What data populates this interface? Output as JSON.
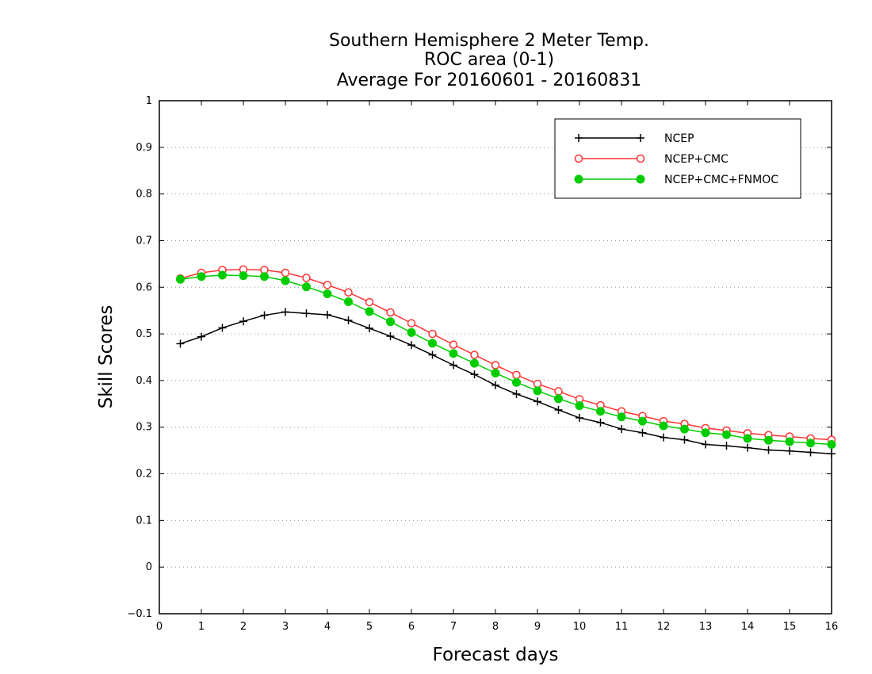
{
  "chart_data": {
    "type": "line",
    "title_lines": [
      "Southern Hemisphere 2 Meter Temp.",
      "ROC area (0-1)",
      "Average For 20160601 - 20160831"
    ],
    "xlabel": "Forecast days",
    "ylabel": "Skill Scores",
    "xlim": [
      0,
      16
    ],
    "ylim": [
      -0.1,
      1
    ],
    "x_ticks": [
      "0",
      "1",
      "2",
      "3",
      "4",
      "5",
      "6",
      "7",
      "8",
      "9",
      "10",
      "11",
      "12",
      "13",
      "14",
      "15",
      "16"
    ],
    "y_ticks": [
      "-0.1",
      "0",
      "0.1",
      "0.2",
      "0.3",
      "0.4",
      "0.5",
      "0.6",
      "0.7",
      "0.8",
      "0.9",
      "1"
    ],
    "grid": "horizontal dotted",
    "legend_position": "top-right",
    "x": [
      0.5,
      1,
      1.5,
      2,
      2.5,
      3,
      3.5,
      4,
      4.5,
      5,
      5.5,
      6,
      6.5,
      7,
      7.5,
      8,
      8.5,
      9,
      9.5,
      10,
      10.5,
      11,
      11.5,
      12,
      12.5,
      13,
      13.5,
      14,
      14.5,
      15,
      15.5,
      16
    ],
    "series": [
      {
        "name": "NCEP",
        "color": "#000000",
        "marker": "plus",
        "values": [
          0.479,
          0.494,
          0.513,
          0.527,
          0.54,
          0.547,
          0.544,
          0.541,
          0.529,
          0.512,
          0.495,
          0.476,
          0.455,
          0.433,
          0.413,
          0.39,
          0.371,
          0.355,
          0.337,
          0.32,
          0.31,
          0.296,
          0.288,
          0.278,
          0.273,
          0.263,
          0.26,
          0.256,
          0.251,
          0.249,
          0.246,
          0.243
        ]
      },
      {
        "name": "NCEP+CMC",
        "color": "#ff3333",
        "marker": "open-circle",
        "values": [
          0.619,
          0.631,
          0.637,
          0.638,
          0.637,
          0.631,
          0.62,
          0.605,
          0.589,
          0.568,
          0.546,
          0.523,
          0.5,
          0.477,
          0.455,
          0.433,
          0.412,
          0.393,
          0.377,
          0.36,
          0.347,
          0.334,
          0.324,
          0.313,
          0.307,
          0.298,
          0.293,
          0.287,
          0.283,
          0.28,
          0.276,
          0.273
        ]
      },
      {
        "name": "NCEP+CMC+FNMOC",
        "color": "#00cc00",
        "marker": "filled-circle",
        "values": [
          0.617,
          0.623,
          0.626,
          0.625,
          0.623,
          0.614,
          0.601,
          0.586,
          0.569,
          0.548,
          0.526,
          0.503,
          0.48,
          0.458,
          0.437,
          0.416,
          0.396,
          0.378,
          0.361,
          0.346,
          0.334,
          0.322,
          0.313,
          0.303,
          0.296,
          0.288,
          0.284,
          0.276,
          0.272,
          0.269,
          0.266,
          0.263
        ]
      }
    ]
  }
}
